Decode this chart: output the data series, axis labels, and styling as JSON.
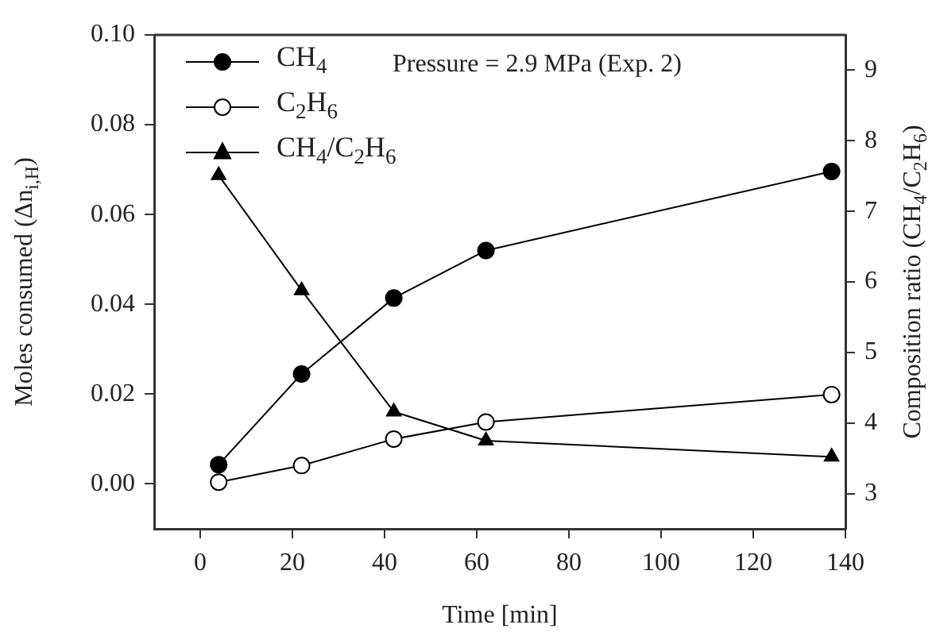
{
  "chart_data": {
    "type": "line",
    "xlabel": "Time [min]",
    "ylabel": "Moles consumed (Δn$_{i,H}$)",
    "y2label": "Composition ratio (CH$_{4}$/C$_{2}$H$_{6}$)",
    "annotations": [
      "Pressure = 2.9 MPa (Exp. 2)"
    ],
    "x": [
      4,
      22,
      42,
      62,
      137
    ],
    "series": [
      {
        "name": "CH$_{4}$",
        "color": "#000000",
        "marker": "circle",
        "values": [
          0.0043,
          0.0245,
          0.0414,
          0.052,
          0.0696
        ]
      },
      {
        "name": "C$_{2}$H$_{6}$",
        "color": "#ffffff",
        "marker": "circle",
        "values": [
          0.0004,
          0.0041,
          0.01,
          0.0138,
          0.0199
        ]
      },
      {
        "name": "CH$_{4}$/C$_{2}$H$_{6}$",
        "color": "#000000",
        "marker": "triangle",
        "axis": "y2",
        "values": [
          7.51,
          5.88,
          4.16,
          3.75,
          3.52
        ]
      }
    ],
    "xlim": [
      -10,
      140
    ],
    "xticks": [
      0,
      20,
      40,
      60,
      80,
      100,
      120,
      140
    ],
    "ylim": [
      -0.01,
      0.1
    ],
    "yticks": [
      {
        "value": 0,
        "label": "0.00"
      },
      {
        "value": 0.02,
        "label": "0.02"
      },
      {
        "value": 0.04,
        "label": "0.04"
      },
      {
        "value": 0.06,
        "label": "0.06"
      },
      {
        "value": 0.08,
        "label": "0.08"
      },
      {
        "value": 0.1,
        "label": "0.10"
      }
    ],
    "y2lim": [
      2.5,
      9.5
    ],
    "y2ticks": [
      3,
      4,
      5,
      6,
      7,
      8,
      9
    ],
    "grid": false,
    "legend": "top left",
    "line_style": "solid"
  }
}
